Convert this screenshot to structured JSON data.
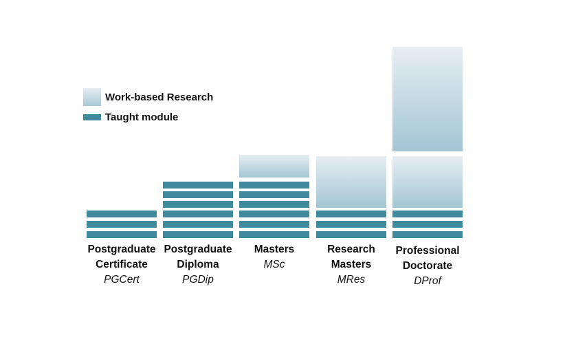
{
  "legend": {
    "research_label": "Work-based Research",
    "taught_label": "Taught module"
  },
  "colors": {
    "taught": "#3f8a9c",
    "research_top": "#e6eef3",
    "research_bottom": "#a3c5d4"
  },
  "columns": [
    {
      "line1": "Postgraduate",
      "line2": "Certificate",
      "abbr": "PGCert",
      "taught_modules": 3,
      "research_blocks": 0
    },
    {
      "line1": "Postgraduate",
      "line2": "Diploma",
      "abbr": "PGDip",
      "taught_modules": 6,
      "research_blocks": 0
    },
    {
      "line1": "Masters",
      "line2": "",
      "abbr": "MSc",
      "taught_modules": 6,
      "research_blocks": 1
    },
    {
      "line1": "Research",
      "line2": "Masters",
      "abbr": "MRes",
      "taught_modules": 3,
      "research_blocks": 1
    },
    {
      "line1": "Professional",
      "line2": "Doctorate",
      "abbr": "DProf",
      "taught_modules": 3,
      "research_blocks": 2
    }
  ]
}
